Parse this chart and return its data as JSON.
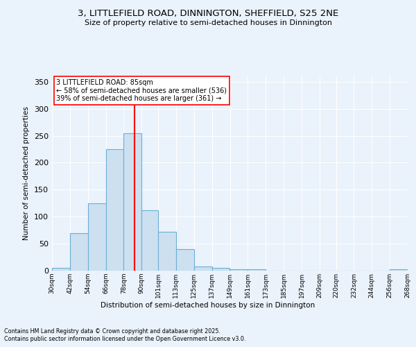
{
  "title1": "3, LITTLEFIELD ROAD, DINNINGTON, SHEFFIELD, S25 2NE",
  "title2": "Size of property relative to semi-detached houses in Dinnington",
  "xlabel": "Distribution of semi-detached houses by size in Dinnington",
  "ylabel": "Number of semi-detached properties",
  "bar_edges": [
    30,
    42,
    54,
    66,
    78,
    90,
    101,
    113,
    125,
    137,
    149,
    161,
    173,
    185,
    197,
    209,
    220,
    232,
    244,
    256,
    268
  ],
  "bar_heights": [
    5,
    70,
    125,
    225,
    255,
    112,
    72,
    40,
    8,
    5,
    3,
    2,
    0,
    0,
    0,
    0,
    0,
    0,
    0,
    2
  ],
  "bar_color": "#cce0f0",
  "bar_edge_color": "#6baed6",
  "vline_x": 85,
  "vline_color": "red",
  "annotation_text": "3 LITTLEFIELD ROAD: 85sqm\n← 58% of semi-detached houses are smaller (536)\n39% of semi-detached houses are larger (361) →",
  "annotation_box_color": "white",
  "annotation_box_edge": "red",
  "ylim": [
    0,
    360
  ],
  "yticks": [
    0,
    50,
    100,
    150,
    200,
    250,
    300,
    350
  ],
  "tick_labels": [
    "30sqm",
    "42sqm",
    "54sqm",
    "66sqm",
    "78sqm",
    "90sqm",
    "101sqm",
    "113sqm",
    "125sqm",
    "137sqm",
    "149sqm",
    "161sqm",
    "173sqm",
    "185sqm",
    "197sqm",
    "209sqm",
    "220sqm",
    "232sqm",
    "244sqm",
    "256sqm",
    "268sqm"
  ],
  "footer1": "Contains HM Land Registry data © Crown copyright and database right 2025.",
  "footer2": "Contains public sector information licensed under the Open Government Licence v3.0.",
  "bg_color": "#eaf2fb",
  "plot_bg_color": "#eaf2fb"
}
